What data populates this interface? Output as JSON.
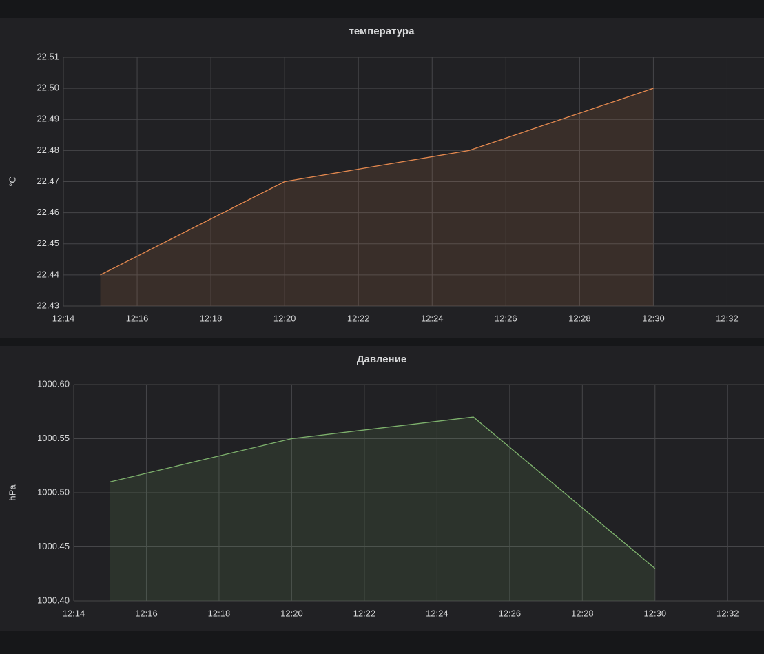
{
  "chart_data": [
    {
      "type": "line",
      "title": "температура",
      "ylabel": "°C",
      "x": [
        "12:15",
        "12:20",
        "12:25",
        "12:30"
      ],
      "values": [
        22.44,
        22.47,
        22.48,
        22.5
      ],
      "color": "#e5894f",
      "fill": true,
      "grid": true,
      "xlim": [
        "12:14",
        "12:33"
      ],
      "xticks": [
        "12:14",
        "12:16",
        "12:18",
        "12:20",
        "12:22",
        "12:24",
        "12:26",
        "12:28",
        "12:30",
        "12:32"
      ],
      "ylim": [
        22.43,
        22.51
      ],
      "yticks": [
        22.43,
        22.44,
        22.45,
        22.46,
        22.47,
        22.48,
        22.49,
        {
          "value": 22.5,
          "label": "22.50"
        },
        22.51
      ]
    },
    {
      "type": "line",
      "title": "Давление",
      "ylabel": "hPa",
      "x": [
        "12:15",
        "12:20",
        "12:25",
        "12:30"
      ],
      "values": [
        1000.51,
        1000.55,
        1000.57,
        1000.43
      ],
      "color": "#7eb26d",
      "fill": true,
      "grid": true,
      "xlim": [
        "12:14",
        "12:33"
      ],
      "xticks": [
        "12:14",
        "12:16",
        "12:18",
        "12:20",
        "12:22",
        "12:24",
        "12:26",
        "12:28",
        "12:30",
        "12:32"
      ],
      "ylim": [
        1000.4,
        1000.6
      ],
      "yticks": [
        {
          "value": 1000.4,
          "label": "1000.40"
        },
        1000.45,
        {
          "value": 1000.5,
          "label": "1000.50"
        },
        1000.55,
        {
          "value": 1000.6,
          "label": "1000.60"
        }
      ]
    }
  ]
}
